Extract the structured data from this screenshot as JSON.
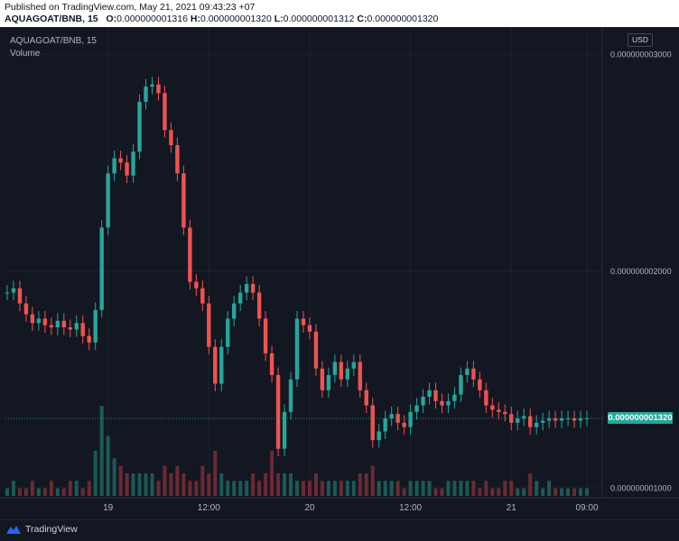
{
  "header": {
    "published": "Published on TradingView.com, May 21, 2021 09:43:23 +07",
    "symbol_interval": "AQUAGOAT/BNB, 15",
    "ohlc": [
      {
        "label": "O:",
        "value": "0.000000001316"
      },
      {
        "label": "H:",
        "value": "0.000000001320"
      },
      {
        "label": "L:",
        "value": "0.000000001312"
      },
      {
        "label": "C:",
        "value": "0.000000001320"
      }
    ]
  },
  "legend": {
    "symbol": "AQUAGOAT/BNB, 15",
    "volume_label": "Volume"
  },
  "currency": "USD",
  "last_price": "0.000000001320",
  "brand": {
    "label": "TradingView"
  },
  "colors": {
    "background": "#131722",
    "up": "#26a69a",
    "down": "#ef5350",
    "grid": "#1e222d",
    "text": "#b2b5be",
    "volume_up": "#1b5a55",
    "volume_down": "#6b2a33"
  },
  "chart_data": {
    "type": "candlestick",
    "y_ticks": [
      {
        "value": 1e-09,
        "label": "0.000000001000"
      },
      {
        "value": 2e-09,
        "label": "0.000000002000"
      },
      {
        "value": 3e-09,
        "label": "0.000000003000"
      }
    ],
    "x_ticks": [
      {
        "index": 16,
        "label": "19"
      },
      {
        "index": 32,
        "label": "12:00"
      },
      {
        "index": 48,
        "label": "20"
      },
      {
        "index": 64,
        "label": "12:00"
      },
      {
        "index": 80,
        "label": "21"
      },
      {
        "index": 92,
        "label": "09:00"
      }
    ],
    "last_price": 1.32e-09,
    "candles": [
      {
        "c": 1.9
      },
      {
        "c": 1.92
      },
      {
        "c": 1.85
      },
      {
        "c": 1.8
      },
      {
        "c": 1.76
      },
      {
        "c": 1.78
      },
      {
        "c": 1.75
      },
      {
        "c": 1.74
      },
      {
        "c": 1.77
      },
      {
        "c": 1.74
      },
      {
        "c": 1.73
      },
      {
        "c": 1.76
      },
      {
        "c": 1.7
      },
      {
        "c": 1.67
      },
      {
        "c": 1.82
      },
      {
        "c": 2.2
      },
      {
        "c": 2.45
      },
      {
        "c": 2.52
      },
      {
        "c": 2.5
      },
      {
        "c": 2.44
      },
      {
        "c": 2.55
      },
      {
        "c": 2.78
      },
      {
        "c": 2.85
      },
      {
        "c": 2.86
      },
      {
        "c": 2.82
      },
      {
        "c": 2.65
      },
      {
        "c": 2.58
      },
      {
        "c": 2.45
      },
      {
        "c": 2.2
      },
      {
        "c": 1.95
      },
      {
        "c": 1.92
      },
      {
        "c": 1.85
      },
      {
        "c": 1.65
      },
      {
        "c": 1.48
      },
      {
        "c": 1.65
      },
      {
        "c": 1.78
      },
      {
        "c": 1.85
      },
      {
        "c": 1.9
      },
      {
        "c": 1.94
      },
      {
        "c": 1.9
      },
      {
        "c": 1.78
      },
      {
        "c": 1.62
      },
      {
        "c": 1.52
      },
      {
        "c": 1.18
      },
      {
        "c": 1.35
      },
      {
        "c": 1.5
      },
      {
        "c": 1.78
      },
      {
        "c": 1.75
      },
      {
        "c": 1.72
      },
      {
        "c": 1.55
      },
      {
        "c": 1.45
      },
      {
        "c": 1.52
      },
      {
        "c": 1.58
      },
      {
        "c": 1.5
      },
      {
        "c": 1.55
      },
      {
        "c": 1.58
      },
      {
        "c": 1.45
      },
      {
        "c": 1.38
      },
      {
        "c": 1.22
      },
      {
        "c": 1.26
      },
      {
        "c": 1.32
      },
      {
        "c": 1.34
      },
      {
        "c": 1.3
      },
      {
        "c": 1.28
      },
      {
        "c": 1.35
      },
      {
        "c": 1.38
      },
      {
        "c": 1.42
      },
      {
        "c": 1.45
      },
      {
        "c": 1.4
      },
      {
        "c": 1.38
      },
      {
        "c": 1.4
      },
      {
        "c": 1.43
      },
      {
        "c": 1.52
      },
      {
        "c": 1.55
      },
      {
        "c": 1.5
      },
      {
        "c": 1.45
      },
      {
        "c": 1.38
      },
      {
        "c": 1.36
      },
      {
        "c": 1.35
      },
      {
        "c": 1.34
      },
      {
        "c": 1.3
      },
      {
        "c": 1.32
      },
      {
        "c": 1.33
      },
      {
        "c": 1.28
      },
      {
        "c": 1.3
      },
      {
        "c": 1.31
      },
      {
        "c": 1.32
      },
      {
        "c": 1.31
      },
      {
        "c": 1.32
      },
      {
        "c": 1.32
      },
      {
        "c": 1.31
      },
      {
        "c": 1.32
      },
      {
        "c": 1.32
      }
    ],
    "volumes": [
      1,
      2,
      1,
      1,
      2,
      1,
      1,
      2,
      1,
      1,
      2,
      2,
      1,
      2,
      6,
      12,
      8,
      5,
      4,
      3,
      3,
      3,
      3,
      3,
      2,
      4,
      3,
      4,
      3,
      2,
      2,
      4,
      3,
      6,
      3,
      2,
      2,
      2,
      2,
      3,
      2,
      3,
      6,
      3,
      3,
      3,
      2,
      2,
      2,
      3,
      2,
      2,
      2,
      2,
      2,
      2,
      3,
      3,
      4,
      2,
      2,
      2,
      2,
      1,
      2,
      2,
      2,
      2,
      1,
      1,
      2,
      2,
      2,
      2,
      2,
      1,
      2,
      1,
      1,
      2,
      2,
      1,
      1,
      3,
      2,
      1,
      2,
      1,
      1,
      1,
      1,
      1,
      1
    ]
  }
}
